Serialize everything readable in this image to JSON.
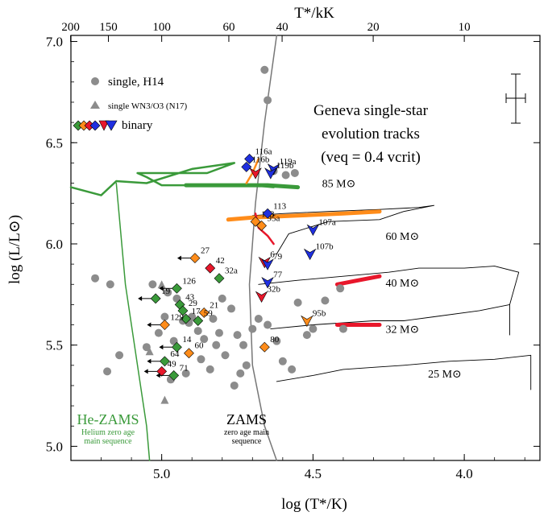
{
  "chart_data": {
    "type": "scatter",
    "title": "",
    "xlabel": "log (T*/K)",
    "ylabel": "log (L/L⊙)",
    "top_xlabel": "T*/kK",
    "xlim": [
      5.3,
      3.75
    ],
    "ylim": [
      4.93,
      7.03
    ],
    "x_ticks": [
      5.0,
      4.5,
      4.0
    ],
    "x_tick_labels": [
      "5.0",
      "4.5",
      "4.0"
    ],
    "y_ticks": [
      5.0,
      5.5,
      6.0,
      6.5,
      7.0
    ],
    "y_tick_labels": [
      "5.0",
      "5.5",
      "6.0",
      "6.5",
      "7.0"
    ],
    "top_ticks_kK": [
      200,
      150,
      100,
      60,
      40,
      20,
      10
    ],
    "top_tick_labels": [
      "200",
      "150",
      "100",
      "60",
      "40",
      "20",
      "10"
    ],
    "legend": {
      "single": "single, H14",
      "wn3": "single WN3/O3 (N17)",
      "binary": "binary"
    },
    "annotation": {
      "line1": "Geneva single-star",
      "line2": "evolution tracks",
      "line3": "(veq = 0.4 vcrit)"
    },
    "he_zams": {
      "label": "He-ZAMS",
      "sub1": "Helium zero age",
      "sub2": "main sequence"
    },
    "zams": {
      "label": "ZAMS",
      "sub1": "zero age main",
      "sub2": "sequence"
    },
    "colors": {
      "single": "#8c8c8c",
      "green": "#3a9a3a",
      "orange": "#ff8c1a",
      "red": "#e8172b",
      "blue": "#1f2fe0",
      "he_zams_line": "#3a9a3a",
      "zams_line": "#777777",
      "track_85_color": "#3a9a3a",
      "track_60_color": "#ff8c1a",
      "track_40_32_color": "#e8172b"
    },
    "mass_labels": [
      {
        "text": "85 M⊙",
        "x": 4.47,
        "y": 6.28
      },
      {
        "text": "60 M⊙",
        "x": 4.26,
        "y": 6.02
      },
      {
        "text": "40 M⊙",
        "x": 4.26,
        "y": 5.79
      },
      {
        "text": "32 M⊙",
        "x": 4.26,
        "y": 5.56
      },
      {
        "text": "25 M⊙",
        "x": 4.12,
        "y": 5.34
      }
    ],
    "single_stars": [
      [
        5.22,
        5.83
      ],
      [
        5.17,
        5.8
      ],
      [
        5.14,
        5.45
      ],
      [
        5.18,
        5.37
      ],
      [
        5.05,
        5.49
      ],
      [
        5.03,
        5.8
      ],
      [
        4.98,
        5.76
      ],
      [
        4.95,
        5.73
      ],
      [
        4.93,
        5.62
      ],
      [
        4.9,
        5.64
      ],
      [
        4.88,
        5.57
      ],
      [
        4.86,
        5.53
      ],
      [
        4.83,
        5.63
      ],
      [
        4.8,
        5.73
      ],
      [
        4.77,
        5.68
      ],
      [
        4.75,
        5.55
      ],
      [
        4.73,
        5.5
      ],
      [
        4.72,
        5.4
      ],
      [
        4.7,
        5.58
      ],
      [
        4.68,
        5.63
      ],
      [
        4.65,
        5.6
      ],
      [
        4.62,
        5.52
      ],
      [
        4.6,
        5.42
      ],
      [
        4.57,
        5.38
      ],
      [
        4.55,
        5.71
      ],
      [
        4.52,
        5.55
      ],
      [
        4.5,
        5.58
      ],
      [
        4.46,
        5.72
      ],
      [
        4.41,
        5.78
      ],
      [
        4.4,
        5.58
      ],
      [
        4.84,
        5.38
      ],
      [
        4.82,
        5.5
      ],
      [
        4.79,
        5.45
      ],
      [
        4.76,
        5.3
      ],
      [
        4.74,
        5.36
      ],
      [
        4.97,
        5.33
      ],
      [
        5.01,
        5.56
      ],
      [
        4.99,
        5.64
      ],
      [
        4.96,
        5.52
      ],
      [
        4.92,
        5.36
      ],
      [
        4.87,
        5.43
      ],
      [
        4.81,
        5.56
      ],
      [
        4.66,
        6.86
      ],
      [
        4.65,
        6.71
      ],
      [
        4.63,
        6.36
      ],
      [
        4.59,
        6.34
      ],
      [
        4.56,
        6.35
      ],
      [
        4.91,
        5.61
      ]
    ],
    "wn3_stars": [
      [
        5.0,
        5.8
      ],
      [
        4.99,
        5.23
      ],
      [
        5.04,
        5.47
      ]
    ],
    "binaries": [
      {
        "id": "27",
        "x": 4.89,
        "y": 5.93,
        "color": "orange",
        "shape": "diamond",
        "arrow": true
      },
      {
        "id": "42",
        "x": 4.84,
        "y": 5.88,
        "color": "red",
        "shape": "diamond",
        "arrow": false
      },
      {
        "id": "32a",
        "x": 4.81,
        "y": 5.83,
        "color": "green",
        "shape": "diamond",
        "arrow": false
      },
      {
        "id": "126",
        "x": 4.95,
        "y": 5.78,
        "color": "green",
        "shape": "diamond",
        "arrow": true
      },
      {
        "id": "19",
        "x": 5.02,
        "y": 5.73,
        "color": "green",
        "shape": "diamond",
        "arrow": true
      },
      {
        "id": "43",
        "x": 4.94,
        "y": 5.7,
        "color": "green",
        "shape": "diamond",
        "arrow": false
      },
      {
        "id": "29",
        "x": 4.93,
        "y": 5.67,
        "color": "green",
        "shape": "diamond",
        "arrow": false
      },
      {
        "id": "21",
        "x": 4.86,
        "y": 5.66,
        "color": "orange",
        "shape": "diamond",
        "arrow": false
      },
      {
        "id": "17",
        "x": 4.92,
        "y": 5.63,
        "color": "green",
        "shape": "diamond",
        "arrow": false
      },
      {
        "id": "59",
        "x": 4.88,
        "y": 5.62,
        "color": "green",
        "shape": "diamond",
        "arrow": false
      },
      {
        "id": "129",
        "x": 4.99,
        "y": 5.6,
        "color": "orange",
        "shape": "diamond",
        "arrow": true
      },
      {
        "id": "14",
        "x": 4.95,
        "y": 5.49,
        "color": "green",
        "shape": "diamond",
        "arrow": true
      },
      {
        "id": "60",
        "x": 4.91,
        "y": 5.46,
        "color": "orange",
        "shape": "diamond",
        "arrow": false
      },
      {
        "id": "64",
        "x": 4.99,
        "y": 5.42,
        "color": "green",
        "shape": "diamond",
        "arrow": true
      },
      {
        "id": "49",
        "x": 5.0,
        "y": 5.37,
        "color": "red",
        "shape": "diamond",
        "arrow": true
      },
      {
        "id": "71",
        "x": 4.96,
        "y": 5.35,
        "color": "green",
        "shape": "diamond",
        "arrow": true
      },
      {
        "id": "80",
        "x": 4.66,
        "y": 5.49,
        "color": "orange",
        "shape": "diamond",
        "arrow": false
      },
      {
        "id": "95a",
        "x": 4.67,
        "y": 6.09,
        "color": "orange",
        "shape": "diamond",
        "arrow": false
      },
      {
        "id": "103",
        "x": 4.69,
        "y": 6.11,
        "color": "orange",
        "shape": "diamond",
        "arrow": false
      },
      {
        "id": "113",
        "x": 4.65,
        "y": 6.15,
        "color": "blue",
        "shape": "diamond",
        "arrow": false
      },
      {
        "id": "116a",
        "x": 4.71,
        "y": 6.42,
        "color": "blue",
        "shape": "diamond",
        "arrow": false
      },
      {
        "id": "116b",
        "x": 4.72,
        "y": 6.38,
        "color": "blue",
        "shape": "diamond",
        "arrow": false
      },
      {
        "id": "119a",
        "x": 4.63,
        "y": 6.37,
        "color": "blue",
        "shape": "tri",
        "arrow": false
      },
      {
        "id": "119b",
        "x": 4.64,
        "y": 6.35,
        "color": "blue",
        "shape": "tri",
        "arrow": false
      },
      {
        "id": "",
        "x": 4.69,
        "y": 6.35,
        "color": "red",
        "shape": "tri",
        "arrow": false
      },
      {
        "id": "107a",
        "x": 4.5,
        "y": 6.07,
        "color": "blue",
        "shape": "tri",
        "arrow": false
      },
      {
        "id": "107b",
        "x": 4.51,
        "y": 5.95,
        "color": "blue",
        "shape": "tri",
        "arrow": false
      },
      {
        "id": "6",
        "x": 4.66,
        "y": 5.91,
        "color": "red",
        "shape": "tri",
        "arrow": false
      },
      {
        "id": "79",
        "x": 4.65,
        "y": 5.9,
        "color": "blue",
        "shape": "tri",
        "arrow": false
      },
      {
        "id": "77",
        "x": 4.65,
        "y": 5.81,
        "color": "blue",
        "shape": "tri",
        "arrow": false
      },
      {
        "id": "32b",
        "x": 4.67,
        "y": 5.74,
        "color": "red",
        "shape": "tri",
        "arrow": false
      },
      {
        "id": "95b",
        "x": 4.52,
        "y": 5.62,
        "color": "orange",
        "shape": "tri",
        "arrow": false
      }
    ],
    "he_zams_points": [
      [
        5.15,
        6.3
      ],
      [
        5.12,
        5.8
      ],
      [
        5.08,
        5.4
      ],
      [
        5.05,
        5.1
      ],
      [
        5.04,
        4.93
      ]
    ],
    "zams_points": [
      [
        4.62,
        7.03
      ],
      [
        4.66,
        6.6
      ],
      [
        4.69,
        6.2
      ],
      [
        4.71,
        5.8
      ],
      [
        4.7,
        5.4
      ],
      [
        4.66,
        5.1
      ],
      [
        4.62,
        4.93
      ]
    ],
    "track_85": [
      [
        4.63,
        6.28
      ],
      [
        4.7,
        6.29
      ],
      [
        4.8,
        6.29
      ],
      [
        4.9,
        6.29
      ],
      [
        5.0,
        6.29
      ],
      [
        5.05,
        6.33
      ],
      [
        5.08,
        6.35
      ],
      [
        5.0,
        6.35
      ],
      [
        4.85,
        6.35
      ],
      [
        4.76,
        6.4
      ],
      [
        4.9,
        6.37
      ],
      [
        5.05,
        6.3
      ],
      [
        5.15,
        6.31
      ],
      [
        5.2,
        6.24
      ],
      [
        5.3,
        6.28
      ]
    ],
    "track_85_bold": [
      [
        4.55,
        6.28
      ],
      [
        4.65,
        6.29
      ],
      [
        4.8,
        6.29
      ],
      [
        4.92,
        6.29
      ]
    ],
    "track_60": [
      [
        4.7,
        6.14
      ],
      [
        4.6,
        6.15
      ],
      [
        4.45,
        6.16
      ],
      [
        4.28,
        6.17
      ],
      [
        4.15,
        6.18
      ],
      [
        4.1,
        6.19
      ],
      [
        4.2,
        6.16
      ],
      [
        4.28,
        6.12
      ],
      [
        4.45,
        6.11
      ],
      [
        4.58,
        6.05
      ],
      [
        4.62,
        5.95
      ]
    ],
    "track_60_bold": [
      [
        4.28,
        6.16
      ],
      [
        4.4,
        6.15
      ],
      [
        4.55,
        6.14
      ],
      [
        4.7,
        6.13
      ],
      [
        4.78,
        6.12
      ]
    ],
    "track_40": [
      [
        4.68,
        5.8
      ],
      [
        4.55,
        5.82
      ],
      [
        4.4,
        5.84
      ],
      [
        4.25,
        5.86
      ],
      [
        4.15,
        5.88
      ],
      [
        4.0,
        5.88
      ],
      [
        3.9,
        5.89
      ],
      [
        3.82,
        5.86
      ],
      [
        3.85,
        5.7
      ],
      [
        3.85,
        5.55
      ]
    ],
    "track_40_bold": [
      [
        4.28,
        5.84
      ],
      [
        4.35,
        5.82
      ],
      [
        4.42,
        5.8
      ]
    ],
    "track_32": [
      [
        4.64,
        5.58
      ],
      [
        4.5,
        5.6
      ],
      [
        4.4,
        5.61
      ],
      [
        4.3,
        5.62
      ],
      [
        4.2,
        5.62
      ],
      [
        4.1,
        5.64
      ],
      [
        3.95,
        5.67
      ],
      [
        3.85,
        5.7
      ]
    ],
    "track_32_bold": [
      [
        4.28,
        5.6
      ],
      [
        4.35,
        5.6
      ],
      [
        4.42,
        5.6
      ]
    ],
    "track_25": [
      [
        4.62,
        5.32
      ],
      [
        4.5,
        5.35
      ],
      [
        4.4,
        5.38
      ],
      [
        4.3,
        5.39
      ],
      [
        4.2,
        5.4
      ],
      [
        4.05,
        5.42
      ],
      [
        3.9,
        5.43
      ],
      [
        3.78,
        5.45
      ],
      [
        3.78,
        5.28
      ]
    ],
    "track_red_60": [
      [
        4.63,
        6.0
      ],
      [
        4.65,
        6.04
      ],
      [
        4.68,
        6.08
      ],
      [
        4.69,
        6.15
      ]
    ],
    "track_orange_85": [
      [
        4.72,
        6.3
      ],
      [
        4.7,
        6.35
      ],
      [
        4.68,
        6.42
      ]
    ]
  }
}
